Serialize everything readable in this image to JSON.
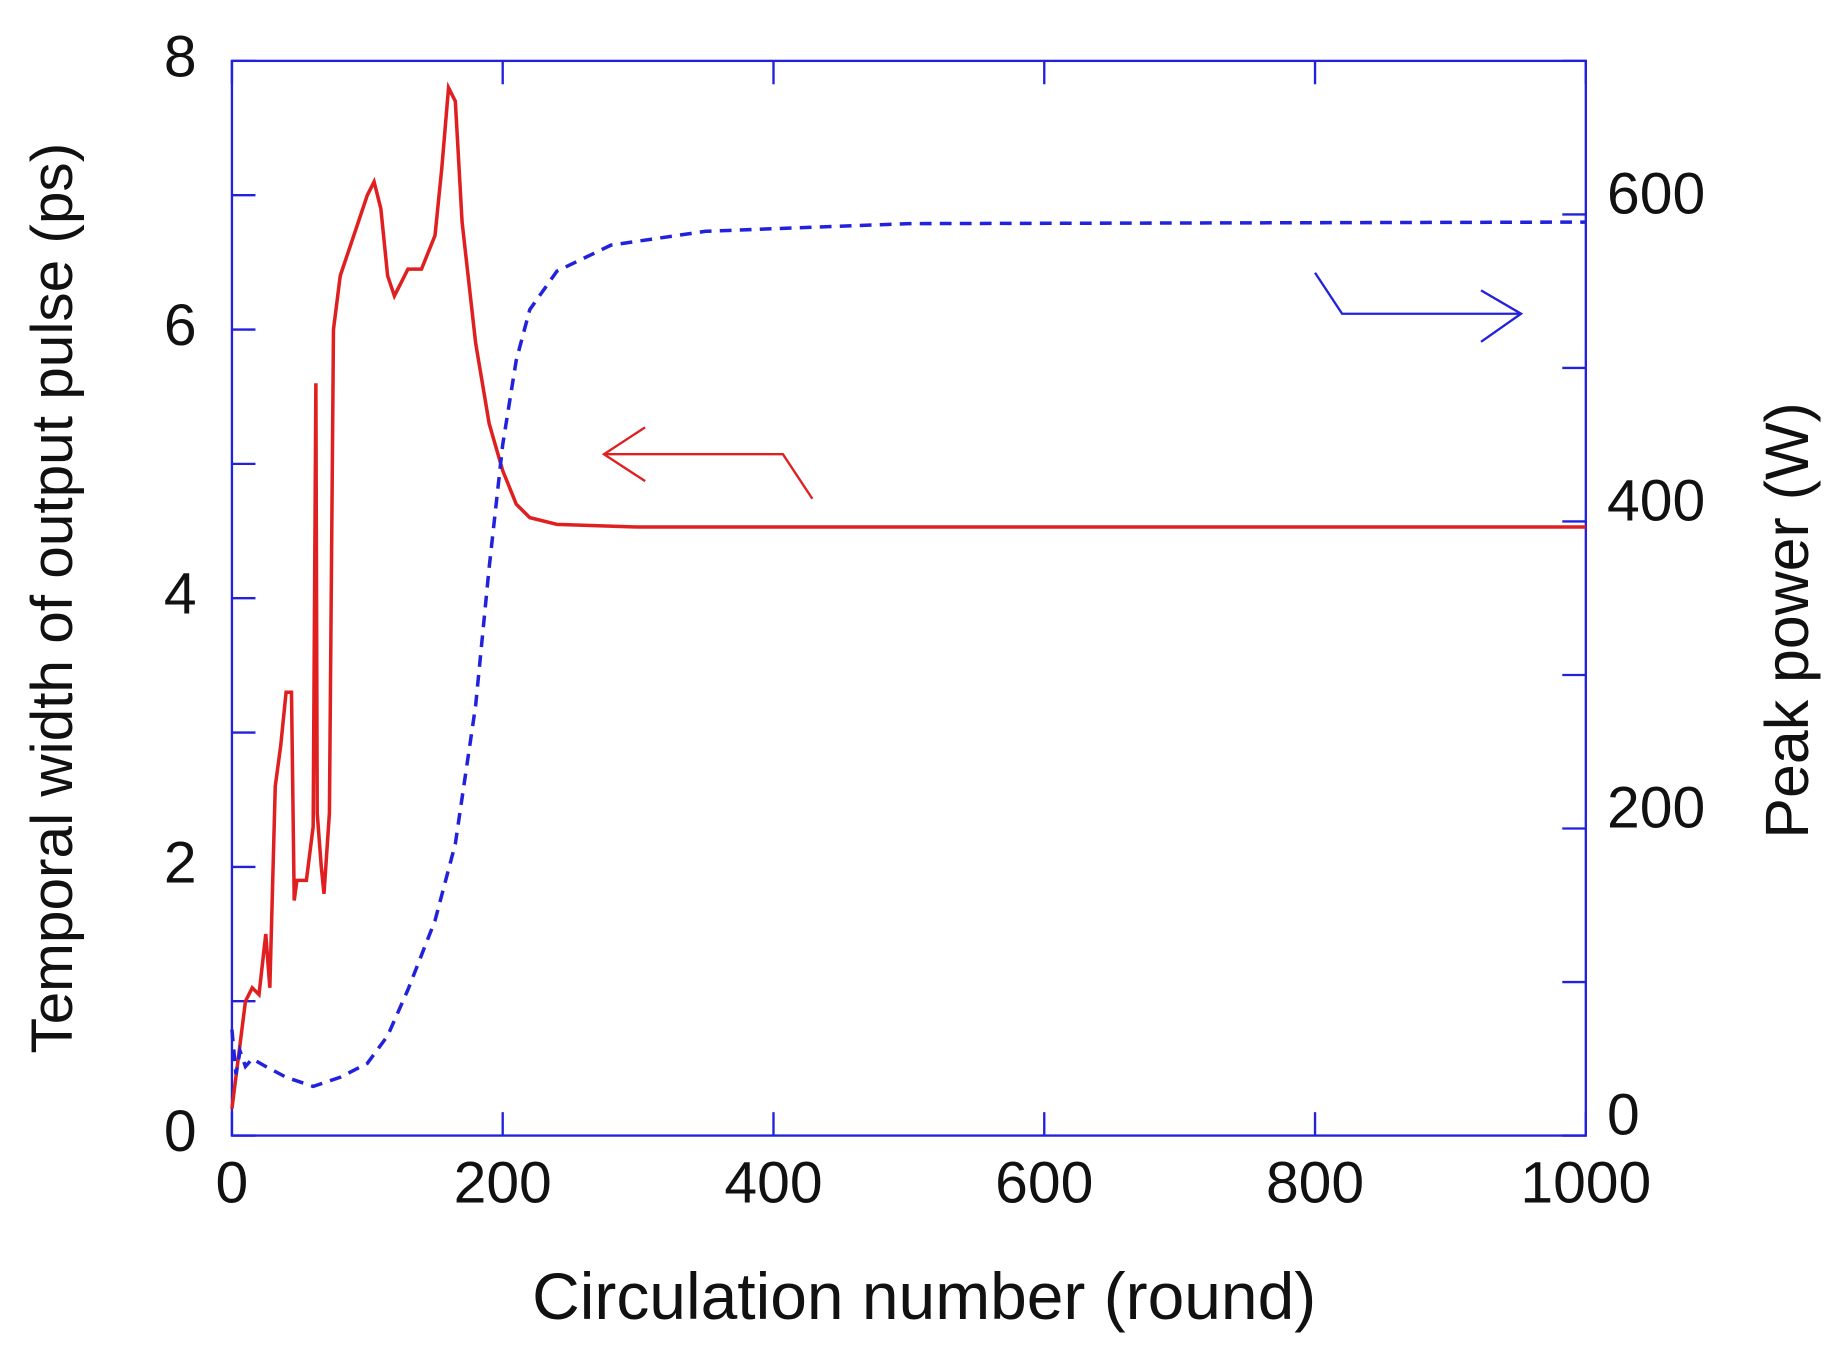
{
  "chart_data": {
    "type": "line",
    "x_label": "Circulation number (round)",
    "y_label": "Temporal width of output pulse (ps)",
    "y2_label": "Peak power (W)",
    "xlim": [
      0,
      1000
    ],
    "xticks": [
      0,
      200,
      400,
      600,
      800,
      1000
    ],
    "ylim": [
      0,
      8
    ],
    "yticks": [
      0,
      2,
      4,
      6,
      8
    ],
    "yminorticks": [
      1,
      3,
      5,
      7
    ],
    "y2lim": [
      0,
      700
    ],
    "y2ticks": [
      0,
      200,
      400,
      600
    ],
    "y2minorticks": [
      100,
      300,
      500,
      700
    ],
    "axis_color": "#2222dd",
    "series": [
      {
        "color": "#e02020",
        "dash": false,
        "axis": "y",
        "x": [
          0,
          5,
          10,
          15,
          20,
          25,
          28,
          32,
          36,
          40,
          44,
          46,
          48,
          55,
          60,
          62,
          63,
          66,
          68,
          72,
          75,
          80,
          90,
          100,
          105,
          110,
          115,
          120,
          125,
          130,
          140,
          150,
          155,
          160,
          165,
          170,
          180,
          190,
          200,
          210,
          220,
          240,
          300,
          500,
          1000
        ],
        "values": [
          0.2,
          0.6,
          1.0,
          1.1,
          1.05,
          1.5,
          1.1,
          2.6,
          2.9,
          3.3,
          3.3,
          1.75,
          1.9,
          1.9,
          2.3,
          5.6,
          2.4,
          2.0,
          1.8,
          2.4,
          6.0,
          6.4,
          6.7,
          7.0,
          7.1,
          6.9,
          6.4,
          6.25,
          6.35,
          6.45,
          6.45,
          6.7,
          7.2,
          7.8,
          7.7,
          6.8,
          5.9,
          5.3,
          4.95,
          4.7,
          4.6,
          4.55,
          4.53,
          4.53,
          4.53
        ]
      },
      {
        "color": "#2222dd",
        "dash": true,
        "axis": "y2",
        "x": [
          0,
          3,
          6,
          10,
          15,
          25,
          40,
          60,
          80,
          100,
          115,
          130,
          150,
          165,
          180,
          190,
          200,
          210,
          220,
          240,
          280,
          350,
          500,
          1000
        ],
        "values": [
          69,
          40,
          55,
          45,
          50,
          45,
          38,
          32,
          38,
          47,
          65,
          95,
          140,
          190,
          280,
          370,
          450,
          505,
          538,
          563,
          580,
          589,
          594,
          595
        ]
      }
    ]
  }
}
